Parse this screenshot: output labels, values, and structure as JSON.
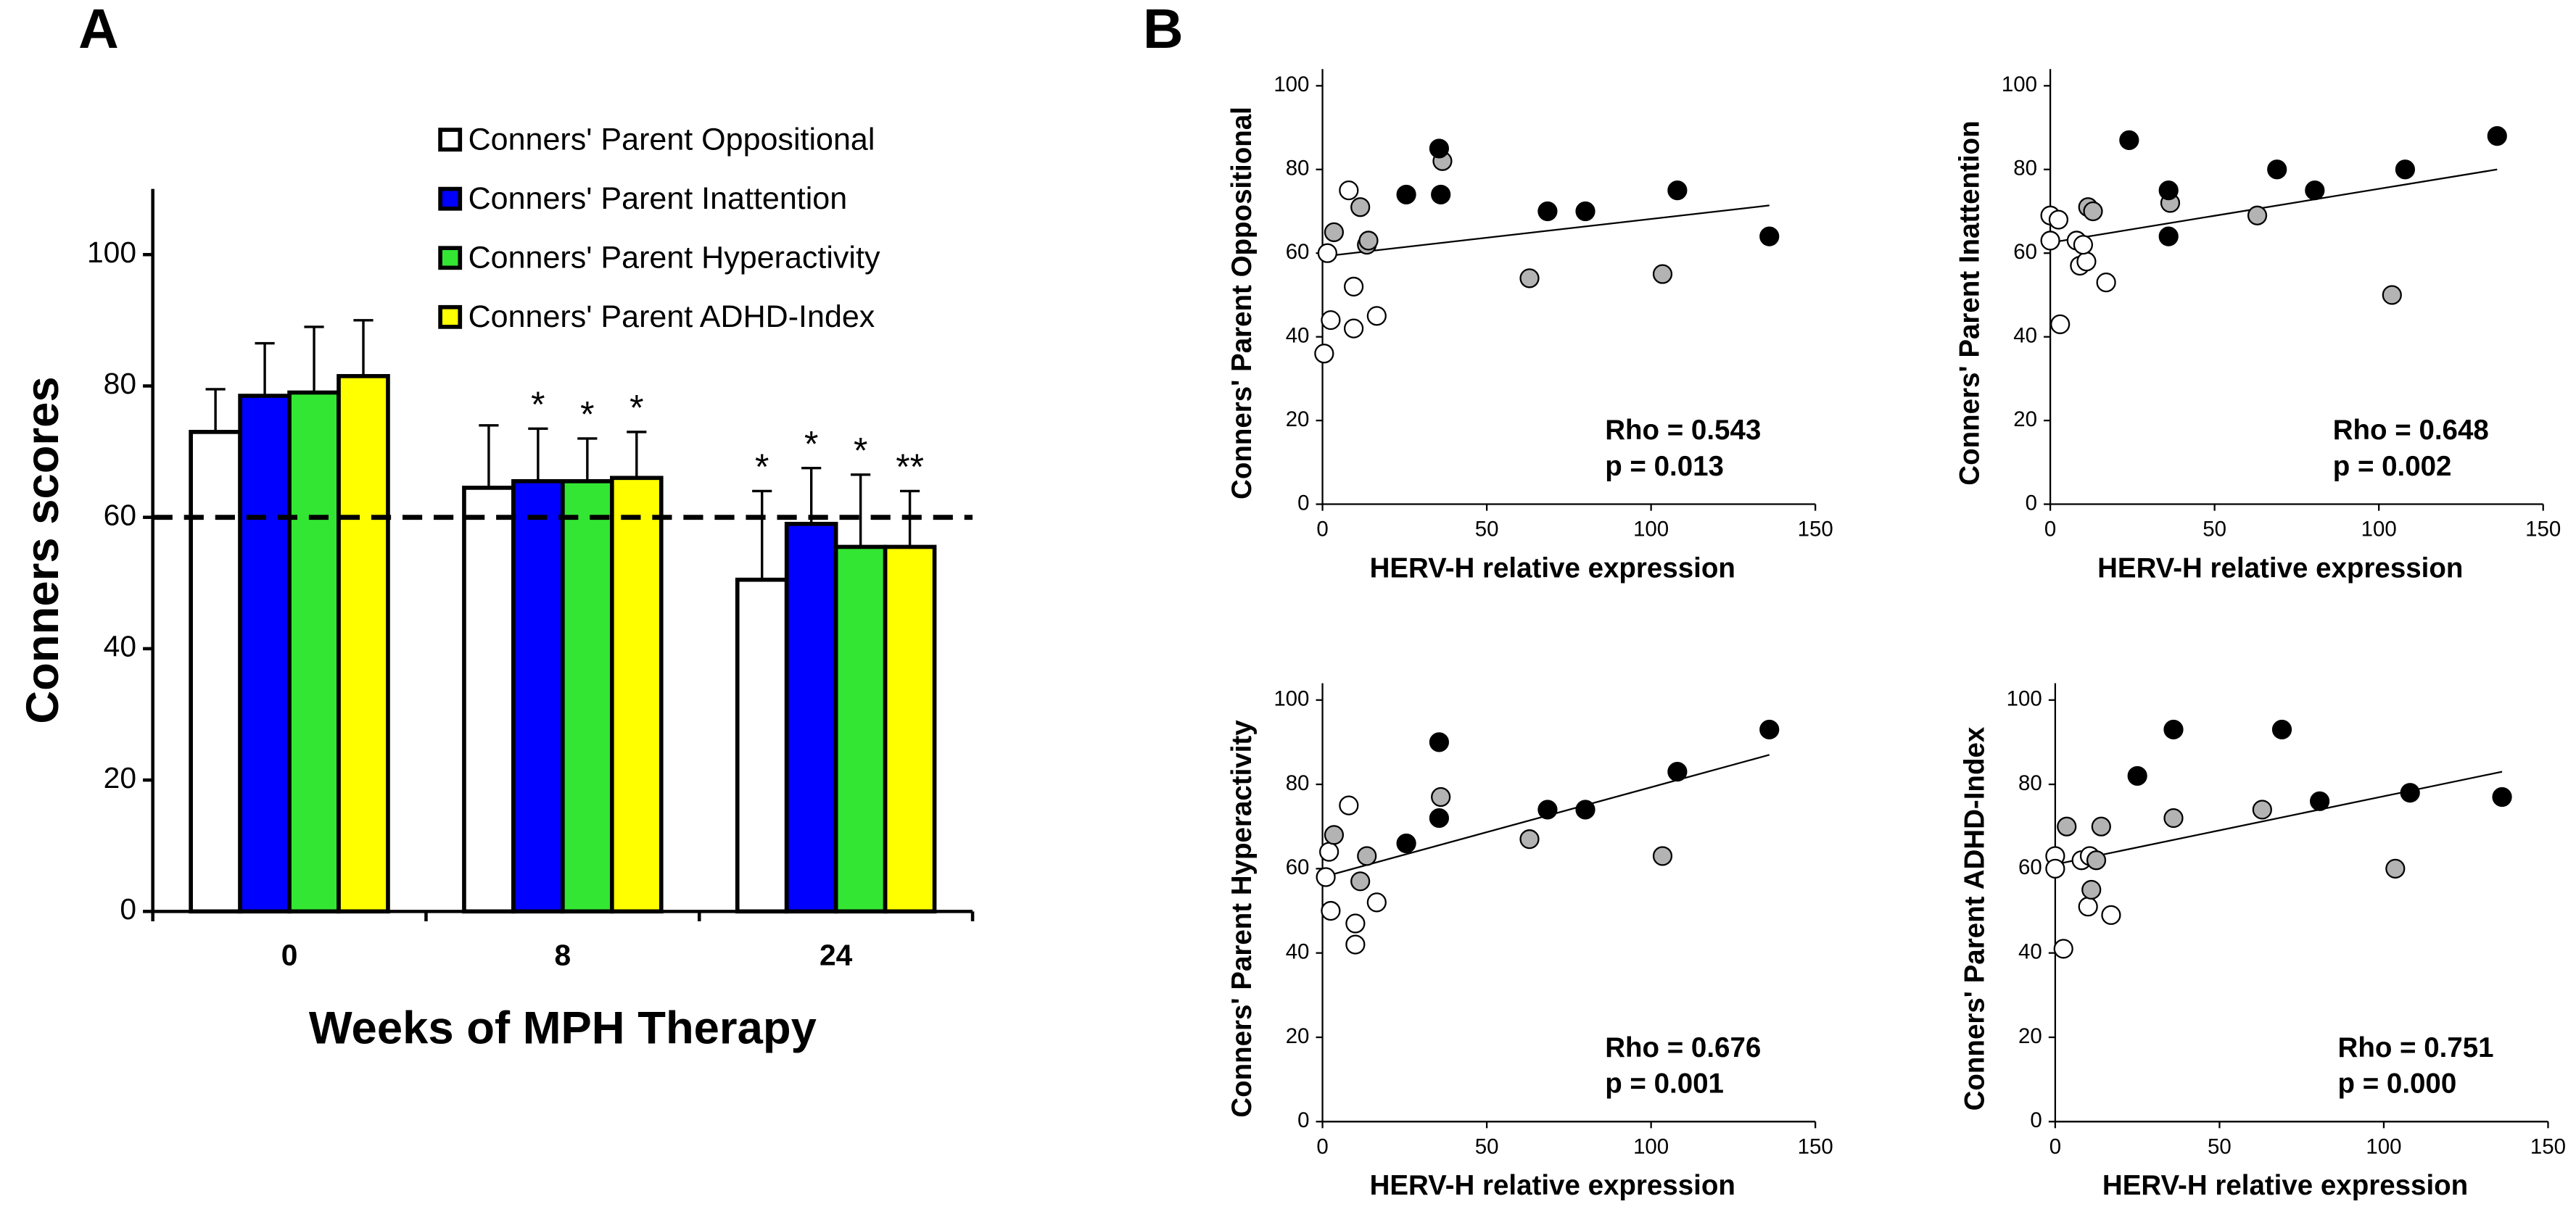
{
  "chart_data": [
    {
      "type": "bar",
      "panel_label": "A",
      "y_label": "Conners scores",
      "x_label": "Weeks of MPH Therapy",
      "categories": [
        "0",
        "8",
        "24"
      ],
      "series": [
        {
          "name": "Conners' Parent Oppositional",
          "color": "#ffffff",
          "values": [
            73,
            64.5,
            50.5
          ],
          "errors": [
            6.5,
            9.5,
            13.5
          ],
          "significance": [
            null,
            null,
            "*"
          ]
        },
        {
          "name": "Conners' Parent Inattention",
          "color": "#0000ff",
          "values": [
            78.5,
            65.5,
            59
          ],
          "errors": [
            8,
            8,
            8.5
          ],
          "significance": [
            null,
            "*",
            "*"
          ]
        },
        {
          "name": "Conners' Parent Hyperactivity",
          "color": "#33e633",
          "values": [
            79,
            65.5,
            55.5
          ],
          "errors": [
            10,
            6.5,
            11
          ],
          "significance": [
            null,
            "*",
            "*"
          ]
        },
        {
          "name": "Conners' Parent ADHD-Index",
          "color": "#ffff00",
          "values": [
            81.5,
            66,
            55.5
          ],
          "errors": [
            8.5,
            7,
            8.5
          ],
          "significance": [
            null,
            "*",
            "**"
          ]
        }
      ],
      "reference_line": 60,
      "ylim": [
        0,
        110
      ],
      "yticks": [
        0,
        20,
        40,
        60,
        80,
        100
      ]
    },
    {
      "type": "scatter",
      "panel_label": "B",
      "y_label": "Conners' Parent Oppositional",
      "x_label": "HERV-H relative expression",
      "series": [
        {
          "color": "#ffffff",
          "x": [
            0.5,
            2.5,
            1.5,
            9.5,
            9.5,
            8,
            16.5
          ],
          "values": [
            36,
            44,
            60,
            52,
            42,
            75,
            45
          ]
        },
        {
          "color": "#b3b3b3",
          "x": [
            3.5,
            11.5,
            13.5,
            14,
            36.5,
            63,
            103.5
          ],
          "values": [
            65,
            71,
            62,
            63,
            82,
            54,
            55
          ]
        },
        {
          "color": "#000000",
          "x": [
            25.5,
            35.5,
            36,
            68.5,
            80,
            108,
            136
          ],
          "values": [
            74,
            85,
            74,
            70,
            70,
            75,
            64
          ]
        }
      ],
      "trendline": {
        "x": [
          0,
          136
        ],
        "values": [
          59.2,
          71.4
        ]
      },
      "annotations": [
        "Rho = 0.543",
        "p = 0.013"
      ],
      "xlim": [
        0,
        150
      ],
      "xticks": [
        0,
        50,
        100,
        150
      ],
      "ylim": [
        0,
        104
      ],
      "yticks": [
        0,
        20,
        40,
        60,
        80,
        100
      ]
    },
    {
      "type": "scatter",
      "y_label": "Conners' Parent Inattention",
      "x_label": "HERV-H relative expression",
      "series": [
        {
          "color": "#ffffff",
          "x": [
            0,
            2.5,
            0,
            3,
            8,
            9,
            11,
            10,
            17
          ],
          "values": [
            69,
            68,
            63,
            43,
            63,
            57,
            58,
            62,
            53
          ]
        },
        {
          "color": "#b3b3b3",
          "x": [
            11.5,
            13,
            36.5,
            63,
            104
          ],
          "values": [
            71,
            70,
            72,
            69,
            50
          ]
        },
        {
          "color": "#000000",
          "x": [
            24,
            36,
            36,
            69,
            80.5,
            108,
            136
          ],
          "values": [
            87,
            75,
            64,
            80,
            75,
            80,
            88
          ]
        }
      ],
      "trendline": {
        "x": [
          0,
          136
        ],
        "values": [
          62.5,
          80
        ]
      },
      "annotations": [
        "Rho = 0.648",
        "p = 0.002"
      ],
      "xlim": [
        0,
        150
      ],
      "xticks": [
        0,
        50,
        100,
        150
      ],
      "ylim": [
        0,
        104
      ],
      "yticks": [
        0,
        20,
        40,
        60,
        80,
        100
      ]
    },
    {
      "type": "scatter",
      "y_label": "Conners' Parent Hyperactivity",
      "x_label": "HERV-H relative expression",
      "series": [
        {
          "color": "#ffffff",
          "x": [
            1,
            2,
            2.5,
            8,
            10,
            10,
            16.5
          ],
          "values": [
            58,
            64,
            50,
            75,
            47,
            42,
            52
          ]
        },
        {
          "color": "#b3b3b3",
          "x": [
            3.5,
            11.5,
            13.5,
            36,
            63,
            103.5
          ],
          "values": [
            68,
            57,
            63,
            77,
            67,
            63
          ]
        },
        {
          "color": "#000000",
          "x": [
            25.5,
            35.5,
            35.5,
            68.5,
            80,
            108,
            136
          ],
          "values": [
            66,
            90,
            72,
            74,
            74,
            83,
            93
          ]
        }
      ],
      "trendline": {
        "x": [
          0,
          136
        ],
        "values": [
          58,
          87
        ]
      },
      "annotations": [
        "Rho = 0.676",
        "p = 0.001"
      ],
      "xlim": [
        0,
        150
      ],
      "xticks": [
        0,
        50,
        100,
        150
      ],
      "ylim": [
        0,
        104
      ],
      "yticks": [
        0,
        20,
        40,
        60,
        80,
        100
      ]
    },
    {
      "type": "scatter",
      "y_label": "Conners' Parent ADHD-Index",
      "x_label": "HERV-H relative expression",
      "series": [
        {
          "color": "#ffffff",
          "x": [
            0,
            0,
            2.5,
            8,
            10,
            10.5,
            17
          ],
          "values": [
            63,
            60,
            41,
            62,
            51,
            63,
            49
          ]
        },
        {
          "color": "#b3b3b3",
          "x": [
            3.5,
            12.5,
            11,
            14,
            36,
            63,
            103.5
          ],
          "values": [
            70,
            62,
            55,
            70,
            72,
            74,
            60
          ]
        },
        {
          "color": "#000000",
          "x": [
            25,
            36,
            69,
            80.5,
            108,
            136
          ],
          "values": [
            82,
            93,
            93,
            76,
            78,
            77
          ]
        }
      ],
      "trendline": {
        "x": [
          0,
          136
        ],
        "values": [
          61,
          83
        ]
      },
      "annotations": [
        "Rho = 0.751",
        "p = 0.000"
      ],
      "xlim": [
        0,
        150
      ],
      "xticks": [
        0,
        50,
        100,
        150
      ],
      "ylim": [
        0,
        104
      ],
      "yticks": [
        0,
        20,
        40,
        60,
        80,
        100
      ]
    }
  ]
}
